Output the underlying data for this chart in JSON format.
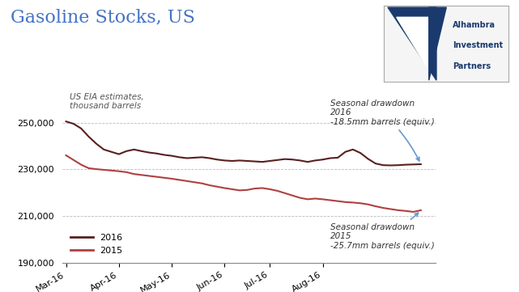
{
  "title": "Gasoline Stocks, US",
  "title_color": "#4472C4",
  "subtitle": "US EIA estimates,\nthousand barrels",
  "annotation_2016": "Seasonal drawdown\n2016\n-18.5mm barrels (equiv.)",
  "annotation_2015": "Seasonal drawdown\n2015\n-25.7mm barrels (equiv.)",
  "x_labels": [
    "Mar-16",
    "Apr-16",
    "May-16",
    "Jun-16",
    "Jul-16",
    "Aug-16"
  ],
  "ylim": [
    190000,
    265000
  ],
  "yticks": [
    190000,
    210000,
    230000,
    250000
  ],
  "color_2016": "#5a1f1f",
  "color_2015": "#b04040",
  "line_width": 1.5,
  "background_color": "#ffffff",
  "grid_color": "#aaaaaa",
  "y2016": [
    250500,
    249500,
    247500,
    244000,
    241000,
    238500,
    237500,
    236500,
    237800,
    238500,
    237800,
    237200,
    236800,
    236200,
    235800,
    235200,
    234800,
    235000,
    235200,
    234800,
    234200,
    233800,
    233600,
    233800,
    233600,
    233400,
    233200,
    233600,
    234000,
    234400,
    234200,
    233800,
    233200,
    233800,
    234200,
    234800,
    235000,
    237500,
    238500,
    237000,
    234500,
    232500,
    231800,
    231700,
    231800,
    232000,
    232100,
    232200
  ],
  "y2015": [
    236000,
    234000,
    232000,
    230500,
    230100,
    229800,
    229500,
    229200,
    228800,
    228000,
    227600,
    227200,
    226800,
    226400,
    226000,
    225500,
    225000,
    224500,
    224000,
    223200,
    222600,
    222000,
    221500,
    221000,
    221200,
    221800,
    222000,
    221500,
    220800,
    219800,
    218800,
    217800,
    217200,
    217500,
    217200,
    216800,
    216400,
    216000,
    215800,
    215500,
    215000,
    214200,
    213500,
    213000,
    212500,
    212200,
    211800,
    212500
  ]
}
